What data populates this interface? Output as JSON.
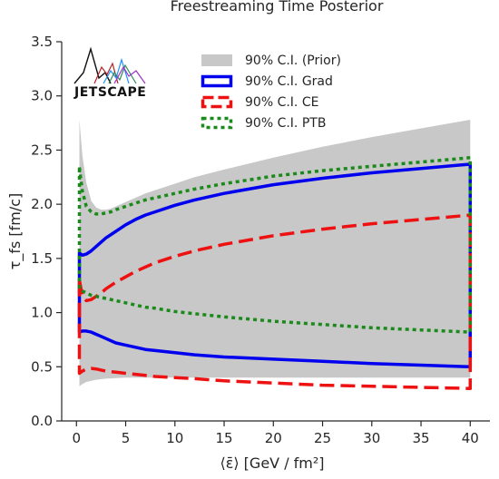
{
  "chart_data": {
    "type": "area",
    "title": "Freestreaming Time Posterior",
    "xlabel": "⟨ε̄⟩ [GeV / fm²]",
    "ylabel": "τ_fs [fm/c]",
    "xlim": [
      -1.5,
      42
    ],
    "ylim": [
      0,
      3.5
    ],
    "xticks": [
      0,
      5,
      10,
      15,
      20,
      25,
      30,
      35,
      40
    ],
    "xtick_labels": [
      "0",
      "5",
      "10",
      "15",
      "20",
      "25",
      "30",
      "35",
      "40"
    ],
    "yticks": [
      0.0,
      0.5,
      1.0,
      1.5,
      2.0,
      2.5,
      3.0,
      3.5
    ],
    "ytick_labels": [
      "0.0",
      "0.5",
      "1.0",
      "1.5",
      "2.0",
      "2.5",
      "3.0",
      "3.5"
    ],
    "grid": false,
    "legend_position": "top-right",
    "logo_text": "JETSCAPE",
    "x": [
      0.3,
      0.6,
      1,
      1.5,
      2,
      2.5,
      3,
      3.5,
      4,
      5,
      6,
      7,
      8,
      10,
      12,
      15,
      20,
      25,
      30,
      35,
      40
    ],
    "series": [
      {
        "name": "90% C.I. (Prior)",
        "style": "band",
        "color": "#c8c8c8",
        "lower": [
          0.32,
          0.34,
          0.36,
          0.37,
          0.38,
          0.385,
          0.39,
          0.393,
          0.395,
          0.4,
          0.4,
          0.4,
          0.4,
          0.4,
          0.4,
          0.4,
          0.4,
          0.4,
          0.4,
          0.4,
          0.4
        ],
        "upper": [
          2.78,
          2.45,
          2.2,
          2.03,
          1.97,
          1.95,
          1.95,
          1.96,
          1.98,
          2.02,
          2.06,
          2.1,
          2.13,
          2.19,
          2.25,
          2.32,
          2.43,
          2.53,
          2.62,
          2.7,
          2.78
        ]
      },
      {
        "name": "90% C.I. Grad",
        "style": "solid",
        "color": "#0000ee",
        "lower": [
          0.82,
          0.83,
          0.83,
          0.82,
          0.8,
          0.78,
          0.76,
          0.74,
          0.72,
          0.7,
          0.68,
          0.66,
          0.65,
          0.63,
          0.61,
          0.59,
          0.57,
          0.55,
          0.53,
          0.515,
          0.5
        ],
        "upper": [
          1.55,
          1.53,
          1.54,
          1.57,
          1.61,
          1.65,
          1.69,
          1.72,
          1.75,
          1.81,
          1.86,
          1.9,
          1.93,
          1.99,
          2.04,
          2.1,
          2.18,
          2.24,
          2.29,
          2.33,
          2.37
        ]
      },
      {
        "name": "90% C.I. CE",
        "style": "dashed",
        "color": "#ee1111",
        "lower": [
          0.44,
          0.46,
          0.48,
          0.485,
          0.48,
          0.47,
          0.46,
          0.455,
          0.45,
          0.44,
          0.43,
          0.42,
          0.41,
          0.4,
          0.39,
          0.37,
          0.35,
          0.33,
          0.32,
          0.31,
          0.3
        ],
        "upper": [
          1.3,
          1.15,
          1.11,
          1.12,
          1.15,
          1.18,
          1.22,
          1.25,
          1.28,
          1.33,
          1.38,
          1.42,
          1.46,
          1.52,
          1.57,
          1.63,
          1.71,
          1.77,
          1.82,
          1.86,
          1.9
        ]
      },
      {
        "name": "90% C.I. PTB",
        "style": "dotted",
        "color": "#1a8a1a",
        "lower": [
          1.22,
          1.2,
          1.18,
          1.16,
          1.15,
          1.14,
          1.13,
          1.12,
          1.11,
          1.09,
          1.07,
          1.05,
          1.04,
          1.01,
          0.99,
          0.96,
          0.92,
          0.89,
          0.86,
          0.84,
          0.82
        ],
        "upper": [
          2.34,
          2.12,
          1.98,
          1.93,
          1.91,
          1.91,
          1.92,
          1.93,
          1.95,
          1.98,
          2.01,
          2.04,
          2.06,
          2.1,
          2.14,
          2.19,
          2.26,
          2.31,
          2.35,
          2.39,
          2.43
        ]
      }
    ]
  }
}
